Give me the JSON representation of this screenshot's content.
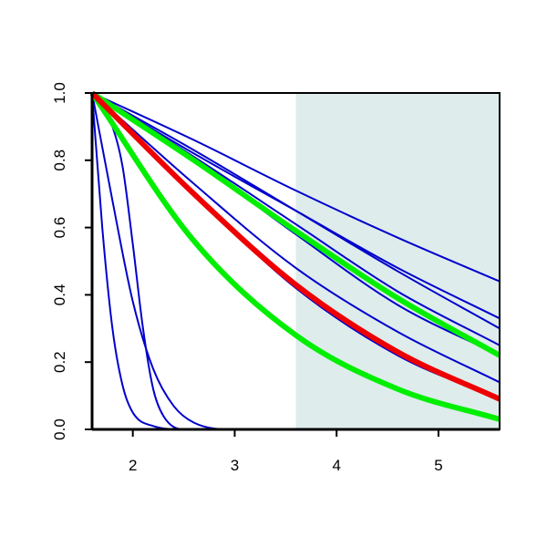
{
  "chart_data": {
    "type": "line",
    "title": "",
    "xlabel": "",
    "ylabel": "",
    "xlim": [
      1.6,
      5.6
    ],
    "ylim": [
      0,
      1
    ],
    "x_ticks": [
      2,
      3,
      4,
      5
    ],
    "x_tick_labels": [
      "2",
      "3",
      "4",
      "5"
    ],
    "y_ticks": [
      0,
      0.2,
      0.4,
      0.6,
      0.8,
      1
    ],
    "y_tick_labels": [
      "0.0",
      "0.2",
      "0.4",
      "0.6",
      "0.8",
      "1.0"
    ],
    "grid": false,
    "legend": "none",
    "shaded_region": {
      "x_start": 3.6,
      "x_end": 5.6,
      "color": "#deecec"
    },
    "series": [
      {
        "color": "#0000cc",
        "width": "thin",
        "points": [
          [
            1.6,
            1
          ],
          [
            2.6,
            0.86
          ],
          [
            3.6,
            0.71
          ],
          [
            4.6,
            0.57
          ],
          [
            5.6,
            0.44
          ]
        ]
      },
      {
        "color": "#0000cc",
        "width": "thin",
        "points": [
          [
            1.6,
            1
          ],
          [
            2.6,
            0.82
          ],
          [
            3.6,
            0.65
          ],
          [
            4.6,
            0.48
          ],
          [
            5.6,
            0.33
          ]
        ]
      },
      {
        "color": "#0000cc",
        "width": "thin",
        "points": [
          [
            1.6,
            1
          ],
          [
            2.6,
            0.83
          ],
          [
            3.6,
            0.65
          ],
          [
            4.6,
            0.47
          ],
          [
            5.6,
            0.3
          ]
        ]
      },
      {
        "color": "#0000cc",
        "width": "thin",
        "points": [
          [
            1.6,
            1
          ],
          [
            2.6,
            0.81
          ],
          [
            3.6,
            0.61
          ],
          [
            4.6,
            0.41
          ],
          [
            5.6,
            0.25
          ]
        ]
      },
      {
        "color": "#0000cc",
        "width": "thin",
        "points": [
          [
            1.6,
            1
          ],
          [
            2.6,
            0.8
          ],
          [
            3.6,
            0.58
          ],
          [
            4.6,
            0.37
          ],
          [
            5.6,
            0.22
          ]
        ]
      },
      {
        "color": "#0000cc",
        "width": "thin",
        "points": [
          [
            1.6,
            1
          ],
          [
            2.6,
            0.73
          ],
          [
            3.6,
            0.48
          ],
          [
            4.6,
            0.29
          ],
          [
            5.6,
            0.14
          ]
        ]
      },
      {
        "color": "#0000cc",
        "width": "thin",
        "points": [
          [
            1.6,
            1
          ],
          [
            2.6,
            0.7
          ],
          [
            3.6,
            0.42
          ],
          [
            4.6,
            0.22
          ],
          [
            5.6,
            0.09
          ]
        ]
      },
      {
        "color": "#00ee00",
        "width": "thick",
        "points": [
          [
            1.6,
            1
          ],
          [
            2.6,
            0.8
          ],
          [
            3.6,
            0.59
          ],
          [
            4.6,
            0.39
          ],
          [
            5.6,
            0.22
          ]
        ]
      },
      {
        "color": "#00ee00",
        "width": "thick",
        "points": [
          [
            1.6,
            1
          ],
          [
            2.6,
            0.56
          ],
          [
            3.6,
            0.28
          ],
          [
            4.6,
            0.12
          ],
          [
            5.6,
            0.03
          ]
        ]
      },
      {
        "color": "#ee0000",
        "width": "thick",
        "points": [
          [
            1.6,
            1
          ],
          [
            2.6,
            0.7
          ],
          [
            3.6,
            0.43
          ],
          [
            4.6,
            0.23
          ],
          [
            5.6,
            0.09
          ]
        ]
      },
      {
        "color": "#0000cc",
        "width": "thin",
        "points": [
          [
            1.6,
            1
          ],
          [
            1.8,
            0.68
          ],
          [
            2.0,
            0.38
          ],
          [
            2.2,
            0.18
          ],
          [
            2.4,
            0.07
          ],
          [
            2.6,
            0.02
          ],
          [
            3.0,
            0
          ],
          [
            5.6,
            0
          ]
        ]
      },
      {
        "color": "#0000cc",
        "width": "thin",
        "points": [
          [
            1.6,
            1
          ],
          [
            1.8,
            0.9
          ],
          [
            1.9,
            0.78
          ],
          [
            2.0,
            0.55
          ],
          [
            2.1,
            0.3
          ],
          [
            2.2,
            0.12
          ],
          [
            2.3,
            0.04
          ],
          [
            2.5,
            0
          ],
          [
            5.6,
            0
          ]
        ]
      },
      {
        "color": "#0000cc",
        "width": "thin",
        "points": [
          [
            1.6,
            1
          ],
          [
            1.7,
            0.6
          ],
          [
            1.8,
            0.3
          ],
          [
            1.9,
            0.13
          ],
          [
            2.0,
            0.05
          ],
          [
            2.2,
            0.01
          ],
          [
            2.5,
            0
          ],
          [
            5.6,
            0
          ]
        ]
      }
    ]
  }
}
